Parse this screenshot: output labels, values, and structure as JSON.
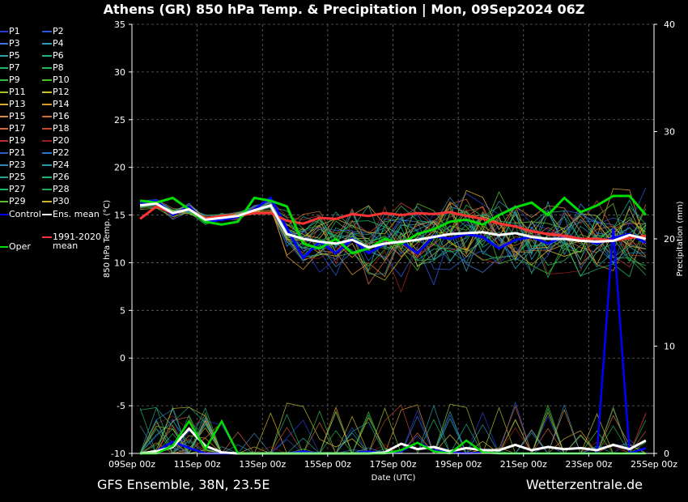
{
  "header": {
    "title": "Athens  (GR)  850 hPa Temp. & Precipitation | Mon, 09Sep2024 06Z"
  },
  "footer": {
    "left": "GFS Ensemble, 38N, 23.5E",
    "right": "Wetterzentrale.de"
  },
  "colors": {
    "background": "#000000",
    "control": "#0000ff",
    "ens_mean": "#ffffff",
    "climate_mean": "#ff3333",
    "oper": "#00dd00",
    "grid": "#666666"
  },
  "legend": {
    "members": [
      {
        "label": "P1",
        "color": "#2b3bd6"
      },
      {
        "label": "P2",
        "color": "#2f56d9"
      },
      {
        "label": "P3",
        "color": "#3a7ad8"
      },
      {
        "label": "P4",
        "color": "#2f9ab0"
      },
      {
        "label": "P5",
        "color": "#2aa6a6"
      },
      {
        "label": "P6",
        "color": "#25b08a"
      },
      {
        "label": "P7",
        "color": "#22b670"
      },
      {
        "label": "P8",
        "color": "#27bb55"
      },
      {
        "label": "P9",
        "color": "#34c03c"
      },
      {
        "label": "P10",
        "color": "#4cbf25"
      },
      {
        "label": "P11",
        "color": "#9fc42a"
      },
      {
        "label": "P12",
        "color": "#c9c22c"
      },
      {
        "label": "P13",
        "color": "#d8b02a"
      },
      {
        "label": "P14",
        "color": "#da9a2a"
      },
      {
        "label": "P15",
        "color": "#d98a3a"
      },
      {
        "label": "P16",
        "color": "#c96d2f"
      },
      {
        "label": "P17",
        "color": "#d46a3e"
      },
      {
        "label": "P18",
        "color": "#c04a2f"
      },
      {
        "label": "P19",
        "color": "#b8322d"
      },
      {
        "label": "P20",
        "color": "#9a2020"
      },
      {
        "label": "P21",
        "color": "#2a59c8"
      },
      {
        "label": "P22",
        "color": "#2d74cc"
      },
      {
        "label": "P23",
        "color": "#3388b8"
      },
      {
        "label": "P24",
        "color": "#2d9aa8"
      },
      {
        "label": "P25",
        "color": "#29a690"
      },
      {
        "label": "P26",
        "color": "#25b278"
      },
      {
        "label": "P27",
        "color": "#22b860"
      },
      {
        "label": "P28",
        "color": "#23a850"
      },
      {
        "label": "P29",
        "color": "#5cc02c"
      },
      {
        "label": "P30",
        "color": "#c8b82a"
      }
    ],
    "control_label": "Control",
    "ens_mean_label": "Ens. mean",
    "climate_label_line1": "1991-2020",
    "climate_label_line2": "mean",
    "oper_label": "Oper"
  },
  "chart_data": {
    "type": "line",
    "title": "Athens  (GR)  850 hPa Temp. & Precipitation | Mon, 09Sep2024 06Z",
    "xlabel": "Date (UTC)",
    "ylabel": "850 hPa Temp. (°C)",
    "ylabel_right": "Precipitation (mm)",
    "xlim": [
      "09Sep 00z",
      "25Sep 00z"
    ],
    "x_ticks": [
      "09Sep 00z",
      "11Sep 00z",
      "13Sep 00z",
      "15Sep 00z",
      "17Sep 00z",
      "19Sep 00z",
      "21Sep 00z",
      "23Sep 00z",
      "25Sep 00z"
    ],
    "ylim": [
      -10,
      35
    ],
    "y_ticks": [
      -10,
      -5,
      0,
      5,
      10,
      15,
      20,
      25,
      30,
      35
    ],
    "ylim_right": [
      0,
      40
    ],
    "y_ticks_right": [
      0,
      10,
      20,
      30,
      40
    ],
    "grid": true,
    "legend_position": "left",
    "x_days": [
      0.25,
      0.75,
      1.25,
      1.75,
      2.25,
      2.75,
      3.25,
      3.75,
      4.25,
      4.75,
      5.25,
      5.75,
      6.25,
      6.75,
      7.25,
      7.75,
      8.25,
      8.75,
      9.25,
      9.75,
      10.25,
      10.75,
      11.25,
      11.75,
      12.25,
      12.75,
      13.25,
      13.75,
      14.25,
      14.75,
      15.25,
      15.75
    ],
    "series": [
      {
        "name": "Control",
        "values": [
          16.3,
          16.5,
          15.0,
          15.9,
          14.3,
          14.5,
          14.8,
          15.6,
          16.8,
          13.6,
          10.5,
          12.2,
          11.0,
          12.5,
          11.0,
          12.0,
          12.2,
          11.0,
          12.8,
          12.5,
          13.0,
          12.7,
          11.5,
          12.4,
          12.7,
          12.0,
          12.8,
          12.5,
          12.0,
          12.6,
          13.0,
          12.1
        ]
      },
      {
        "name": "Ens. mean",
        "values": [
          16.0,
          16.2,
          15.2,
          15.6,
          14.5,
          14.7,
          14.9,
          15.5,
          16.0,
          13.0,
          12.5,
          12.2,
          12.0,
          12.4,
          11.6,
          12.0,
          12.2,
          12.4,
          12.7,
          13.0,
          13.1,
          13.2,
          12.9,
          13.1,
          12.7,
          12.5,
          12.5,
          12.3,
          12.2,
          12.3,
          12.9,
          12.5
        ]
      },
      {
        "name": "1991-2020 mean",
        "values": [
          14.6,
          15.9,
          15.2,
          15.6,
          14.6,
          14.9,
          14.9,
          15.2,
          15.2,
          14.4,
          14.1,
          14.7,
          14.6,
          15.1,
          14.9,
          15.2,
          15.0,
          15.2,
          15.1,
          15.3,
          14.9,
          14.6,
          14.1,
          13.8,
          13.3,
          13.0,
          12.8,
          12.5,
          12.5,
          12.3,
          12.6,
          12.8
        ]
      },
      {
        "name": "Oper",
        "values": [
          16.5,
          16.3,
          16.8,
          15.6,
          14.3,
          14.0,
          14.3,
          16.8,
          16.5,
          15.9,
          12.0,
          11.5,
          12.5,
          11.0,
          11.5,
          12.5,
          12.0,
          13.0,
          13.5,
          14.3,
          14.5,
          14.0,
          15.0,
          15.8,
          16.3,
          15.0,
          16.8,
          15.3,
          16.0,
          17.0,
          17.0,
          15.0
        ]
      }
    ],
    "precip_series": [
      {
        "name": "Control",
        "values": [
          0,
          0.2,
          1.1,
          0.5,
          0,
          0,
          0,
          0,
          0,
          0,
          0.2,
          0,
          0,
          0,
          0.2,
          0,
          0.2,
          1.0,
          0.3,
          0.1,
          0,
          0.1,
          0,
          0,
          0,
          0,
          0,
          0,
          0,
          21.0,
          0,
          0.5
        ]
      },
      {
        "name": "Ens. mean",
        "values": [
          0,
          0.2,
          0.6,
          2.3,
          0.7,
          0.1,
          0,
          0,
          0,
          0,
          0,
          0,
          0,
          0,
          0,
          0.1,
          0.9,
          0.4,
          0.6,
          0.2,
          0.5,
          0.3,
          0.3,
          0.8,
          0.3,
          0.6,
          0.4,
          0.5,
          0.3,
          0.8,
          0.4,
          1.2
        ]
      },
      {
        "name": "Oper",
        "values": [
          0,
          0,
          0.7,
          3.0,
          0.4,
          3.0,
          0,
          0,
          0,
          0,
          0,
          0,
          0,
          0,
          0,
          0,
          0.3,
          1.0,
          0.2,
          0,
          1.2,
          0.1,
          0,
          0,
          0,
          0,
          0,
          0,
          0,
          0,
          0,
          0
        ]
      }
    ]
  }
}
